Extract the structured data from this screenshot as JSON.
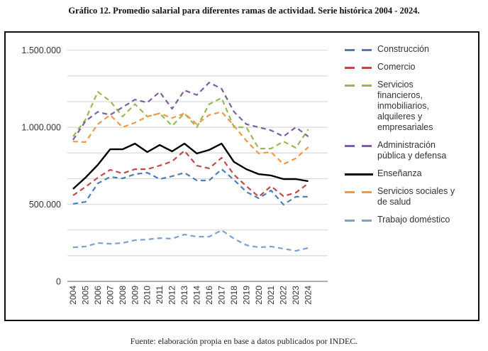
{
  "title": "Gráfico 12. Promedio salarial para diferentes ramas de actividad. Serie histórica 2004 - 2024.",
  "source": "Fuente: elaboración propia en base a datos publicados por INDEC.",
  "chart_data": {
    "type": "line",
    "title": "Gráfico 12. Promedio salarial para diferentes ramas de actividad. Serie histórica 2004 - 2024.",
    "xlabel": "",
    "ylabel": "",
    "x": [
      "2004",
      "2005",
      "2006",
      "2007",
      "2008",
      "2009",
      "2010",
      "2011",
      "2012",
      "2013",
      "2014",
      "2016",
      "2017",
      "2018",
      "2019",
      "2020",
      "2021",
      "2022",
      "2023",
      "2024"
    ],
    "ylim": [
      0,
      1500000
    ],
    "yticks": [
      0,
      500000,
      1000000,
      1500000
    ],
    "ytick_labels": [
      "0",
      "500.000",
      "1.000.000",
      "1.500.000"
    ],
    "grid": true,
    "legend_position": "right",
    "series": [
      {
        "name": "Construcción",
        "color": "#4a7ebb",
        "style": "dashed",
        "values": [
          503000,
          516000,
          636000,
          678000,
          668000,
          696000,
          705000,
          664000,
          682000,
          705000,
          655000,
          655000,
          728000,
          659000,
          581000,
          539000,
          590000,
          498000,
          549000,
          549000
        ]
      },
      {
        "name": "Comercio",
        "color": "#be4b48",
        "style": "dashed",
        "values": [
          558000,
          613000,
          673000,
          724000,
          701000,
          728000,
          728000,
          751000,
          779000,
          848000,
          751000,
          733000,
          802000,
          692000,
          618000,
          549000,
          618000,
          553000,
          576000,
          636000
        ]
      },
      {
        "name": "Servicios financieros, inmobiliarios, alquileres y empresariales",
        "color": "#98b954",
        "style": "dashed",
        "values": [
          940000,
          1050000,
          1230000,
          1170000,
          1070000,
          1150000,
          1070000,
          1090000,
          1010000,
          1090000,
          1000000,
          1150000,
          1190000,
          1000000,
          1000000,
          862000,
          862000,
          908000,
          867000,
          987000
        ]
      },
      {
        "name": "Administración pública y defensa",
        "color": "#7d60a0",
        "style": "dashed",
        "values": [
          918000,
          1040000,
          1100000,
          1080000,
          1130000,
          1180000,
          1160000,
          1230000,
          1120000,
          1240000,
          1210000,
          1290000,
          1250000,
          1100000,
          1020000,
          1000000,
          980000,
          940000,
          1000000,
          940000
        ]
      },
      {
        "name": "Enseñanza",
        "color": "#000000",
        "style": "solid",
        "values": [
          600000,
          673000,
          756000,
          857000,
          857000,
          894000,
          839000,
          885000,
          844000,
          894000,
          830000,
          853000,
          894000,
          775000,
          728000,
          696000,
          687000,
          664000,
          664000,
          650000
        ]
      },
      {
        "name": "Servicios sociales y de salud",
        "color": "#f79646",
        "style": "dashed",
        "values": [
          908000,
          904000,
          1020000,
          1080000,
          1000000,
          1030000,
          1070000,
          1090000,
          1060000,
          1090000,
          1020000,
          1080000,
          1100000,
          1010000,
          913000,
          830000,
          839000,
          761000,
          798000,
          871000
        ]
      },
      {
        "name": "Trabajo doméstico",
        "color": "#7f9fcf",
        "style": "dashed",
        "values": [
          221000,
          226000,
          249000,
          244000,
          249000,
          267000,
          272000,
          281000,
          277000,
          304000,
          290000,
          290000,
          332000,
          277000,
          235000,
          221000,
          226000,
          212000,
          198000,
          217000
        ]
      }
    ]
  },
  "legend": {
    "items": [
      {
        "label_lines": [
          "Construcción"
        ]
      },
      {
        "label_lines": [
          "Comercio"
        ]
      },
      {
        "label_lines": [
          "Servicios",
          "financieros,",
          "inmobiliarios,",
          "alquileres y",
          "empresariales"
        ]
      },
      {
        "label_lines": [
          "Administración",
          "pública y defensa"
        ]
      },
      {
        "label_lines": [
          "Enseñanza"
        ]
      },
      {
        "label_lines": [
          "Servicios sociales y",
          "de salud"
        ]
      },
      {
        "label_lines": [
          "Trabajo doméstico"
        ]
      }
    ]
  }
}
